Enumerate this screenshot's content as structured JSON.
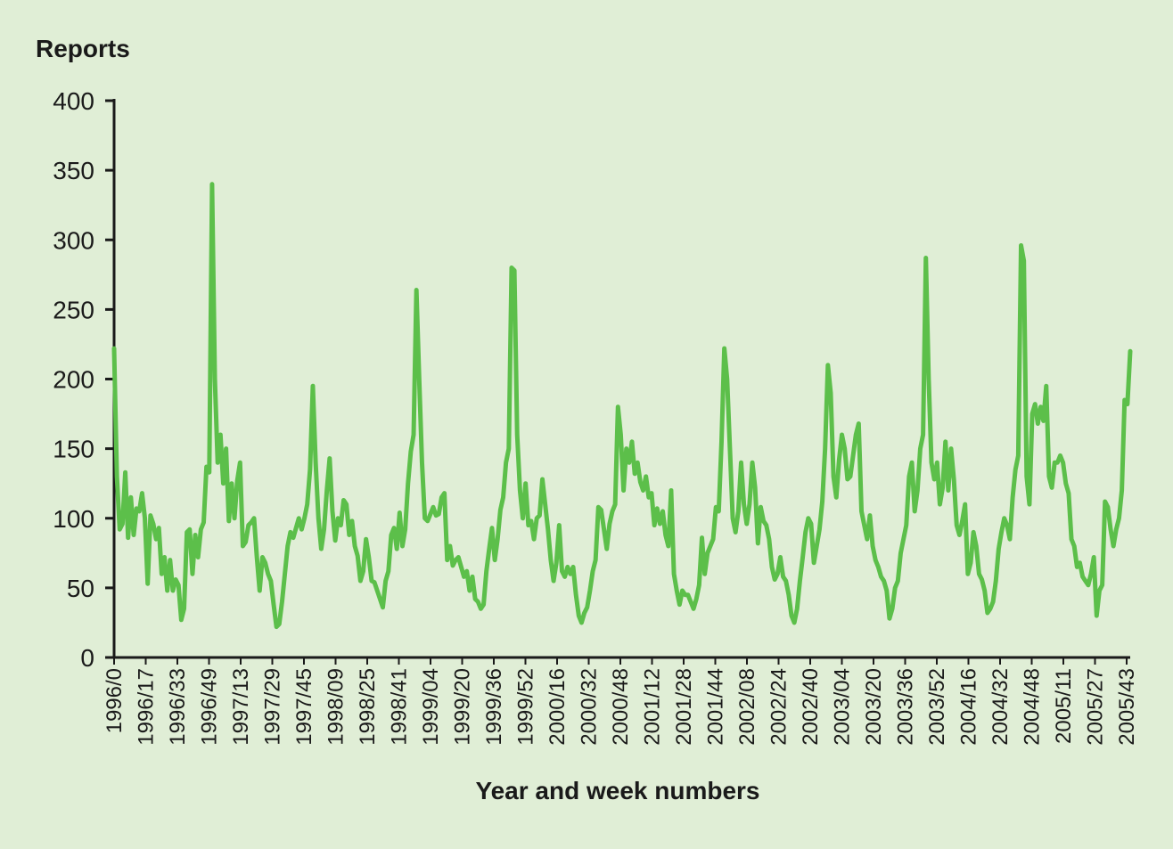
{
  "colors": {
    "background": "#e0eed6",
    "line": "#5cbf4a",
    "axis": "#1a1a1a"
  },
  "chart_data": {
    "type": "line",
    "title": "",
    "xlabel": "Year and week numbers",
    "ylabel": "Reports",
    "ylim": [
      0,
      400
    ],
    "yticks": [
      0,
      50,
      100,
      150,
      200,
      250,
      300,
      350,
      400
    ],
    "grid": false,
    "legend": "none",
    "xtick_labels": [
      "1996/0",
      "1996/17",
      "1996/33",
      "1996/49",
      "1997/13",
      "1997/29",
      "1997/45",
      "1998/09",
      "1998/25",
      "1998/41",
      "1999/04",
      "1999/20",
      "1999/36",
      "1999/52",
      "2000/16",
      "2000/32",
      "2000/48",
      "2001/12",
      "2001/28",
      "2001/44",
      "2002/08",
      "2002/24",
      "2002/40",
      "2003/04",
      "2003/20",
      "2003/36",
      "2003/52",
      "2004/16",
      "2004/32",
      "2004/48",
      "2005/11",
      "2005/27",
      "2005/43"
    ],
    "series": [
      {
        "values": [
          222,
          130,
          92,
          96,
          133,
          86,
          115,
          88,
          107,
          105,
          118,
          100,
          53,
          102,
          96,
          85,
          93,
          60,
          72,
          48,
          70,
          48,
          56,
          52,
          27,
          35,
          90,
          92,
          60,
          88,
          72,
          92,
          97,
          137,
          133,
          340,
          200,
          140,
          160,
          125,
          150,
          98,
          125,
          100,
          127,
          140,
          80,
          83,
          95,
          97,
          100,
          72,
          48,
          72,
          68,
          60,
          55,
          38,
          22,
          24,
          40,
          60,
          80,
          90,
          86,
          93,
          100,
          92,
          100,
          110,
          135,
          195,
          140,
          100,
          78,
          92,
          120,
          143,
          105,
          84,
          100,
          95,
          113,
          110,
          88,
          98,
          80,
          73,
          55,
          62,
          85,
          72,
          55,
          54,
          48,
          42,
          36,
          55,
          62,
          88,
          93,
          78,
          104,
          80,
          92,
          125,
          148,
          160,
          264,
          200,
          140,
          100,
          98,
          103,
          108,
          102,
          103,
          115,
          118,
          70,
          80,
          66,
          70,
          72,
          65,
          58,
          62,
          48,
          58,
          42,
          40,
          35,
          38,
          62,
          78,
          93,
          70,
          85,
          106,
          115,
          140,
          150,
          280,
          278,
          160,
          120,
          100,
          125,
          95,
          98,
          85,
          100,
          102,
          128,
          110,
          92,
          70,
          55,
          68,
          95,
          62,
          58,
          65,
          60,
          65,
          45,
          30,
          25,
          32,
          36,
          48,
          62,
          70,
          108,
          106,
          92,
          78,
          96,
          105,
          110,
          180,
          160,
          120,
          150,
          140,
          155,
          132,
          140,
          126,
          120,
          130,
          115,
          118,
          95,
          107,
          96,
          105,
          88,
          80,
          120,
          60,
          48,
          38,
          48,
          45,
          45,
          40,
          35,
          42,
          52,
          86,
          60,
          75,
          80,
          85,
          108,
          105,
          155,
          222,
          200,
          150,
          100,
          90,
          105,
          140,
          110,
          96,
          110,
          140,
          122,
          82,
          108,
          98,
          95,
          85,
          65,
          56,
          60,
          72,
          58,
          55,
          45,
          30,
          25,
          35,
          55,
          72,
          90,
          100,
          96,
          68,
          80,
          92,
          112,
          150,
          210,
          190,
          130,
          115,
          142,
          160,
          150,
          128,
          130,
          145,
          160,
          168,
          105,
          95,
          85,
          102,
          80,
          70,
          65,
          58,
          55,
          48,
          28,
          35,
          50,
          55,
          75,
          85,
          95,
          130,
          140,
          105,
          120,
          150,
          160,
          287,
          200,
          140,
          128,
          140,
          110,
          122,
          155,
          120,
          150,
          128,
          95,
          88,
          98,
          110,
          60,
          68,
          90,
          80,
          60,
          56,
          48,
          32,
          35,
          40,
          55,
          78,
          90,
          100,
          95,
          85,
          115,
          135,
          145,
          296,
          285,
          130,
          110,
          175,
          182,
          168,
          180,
          170,
          195,
          130,
          122,
          140,
          140,
          145,
          140,
          125,
          118,
          85,
          80,
          65,
          68,
          58,
          55,
          52,
          60,
          72,
          30,
          48,
          52,
          112,
          108,
          92,
          80,
          92,
          100,
          120,
          185,
          182,
          220
        ]
      }
    ]
  }
}
